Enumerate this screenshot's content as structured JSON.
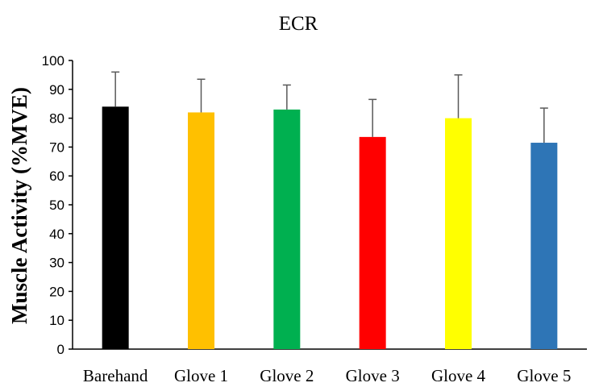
{
  "chart_data": {
    "type": "bar",
    "title": "ECR",
    "xlabel": "",
    "ylabel": "Muscle Activity (%MVE)",
    "categories": [
      "Barehand",
      "Glove 1",
      "Glove 2",
      "Glove 3",
      "Glove 4",
      "Glove 5"
    ],
    "values": [
      84,
      82,
      83,
      73.5,
      80,
      71.5
    ],
    "error_upper": [
      12,
      11.5,
      8.5,
      13,
      15,
      12
    ],
    "colors": [
      "#000000",
      "#FFC000",
      "#00B050",
      "#FF0000",
      "#FFFF00",
      "#2E75B6"
    ],
    "ylim": [
      0,
      100
    ],
    "yticks": [
      0,
      10,
      20,
      30,
      40,
      50,
      60,
      70,
      80,
      90,
      100
    ],
    "grid": false,
    "legend": "none"
  }
}
